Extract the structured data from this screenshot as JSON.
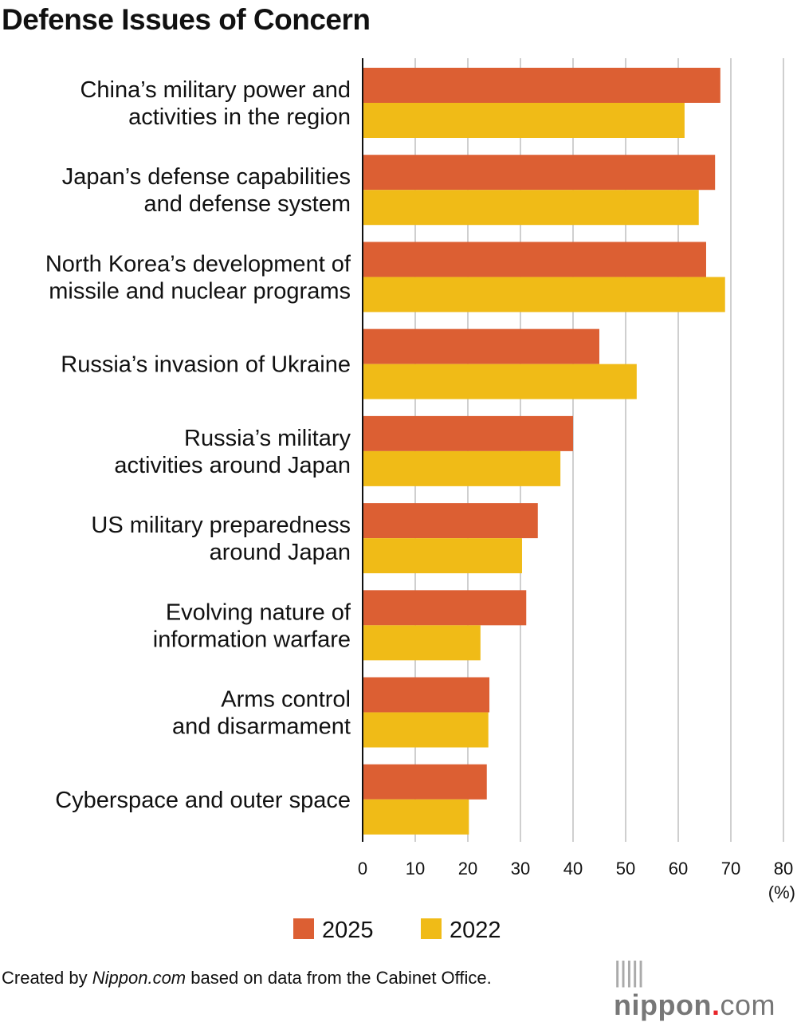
{
  "chart_data": {
    "type": "bar",
    "orientation": "horizontal",
    "title": "Defense Issues of Concern",
    "categories": [
      [
        "China’s military power and",
        "activities in the region"
      ],
      [
        "Japan’s defense capabilities",
        "and defense system"
      ],
      [
        "North Korea’s development of",
        "missile and nuclear programs"
      ],
      [
        "Russia’s invasion of Ukraine"
      ],
      [
        "Russia’s military",
        "activities around Japan"
      ],
      [
        "US military preparedness",
        "around Japan"
      ],
      [
        "Evolving nature of",
        "information warfare"
      ],
      [
        "Arms control",
        "and disarmament"
      ],
      [
        "Cyberspace and outer space"
      ]
    ],
    "series": [
      {
        "name": "2025",
        "color": "#dc5f33",
        "values": [
          68.0,
          67.0,
          65.3,
          45.0,
          40.0,
          33.3,
          31.1,
          24.1,
          23.6
        ]
      },
      {
        "name": "2022",
        "color": "#f0bb17",
        "values": [
          61.2,
          63.9,
          68.9,
          52.1,
          37.6,
          30.3,
          22.4,
          23.9,
          20.2
        ]
      }
    ],
    "xlim": [
      0,
      80
    ],
    "xticks": [
      "0",
      "10",
      "20",
      "30",
      "40",
      "50",
      "60",
      "70",
      "80"
    ],
    "xunit": "(%)",
    "grid": true,
    "legend_placement": "bottom"
  },
  "footer": {
    "credit_prefix": "Created by ",
    "credit_source": "Nippon.com",
    "credit_suffix": " based on data from the Cabinet Office.",
    "logo": "nippon.com"
  }
}
